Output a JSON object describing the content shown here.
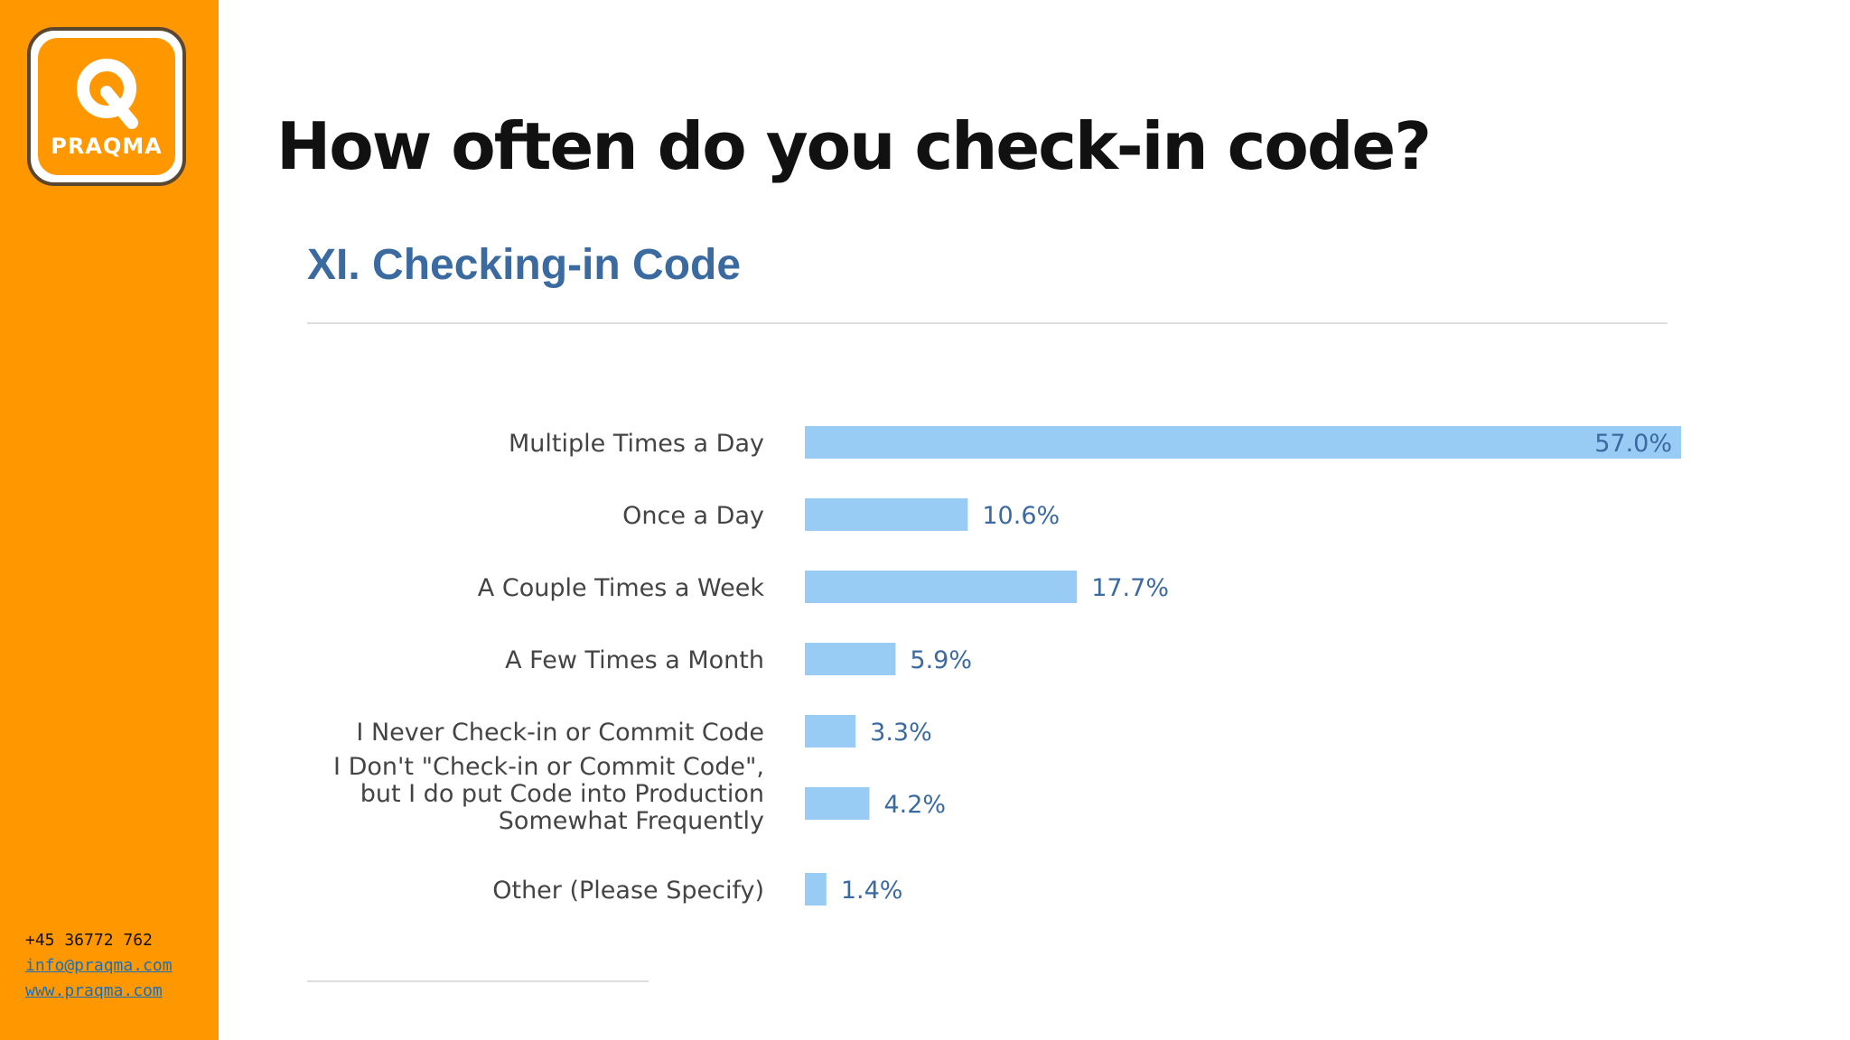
{
  "sidebar": {
    "logo_text": "PRAQMA",
    "contact": {
      "phone": "+45 36772 762",
      "email": "info@praqma.com",
      "website": "www.praqma.com"
    },
    "colors": {
      "background": "#ff9800",
      "link": "#1c6fb5"
    }
  },
  "page_title": "How often do you check-in code?",
  "chart_data": {
    "type": "bar",
    "orientation": "horizontal",
    "title": "XI. Checking-in Code",
    "categories": [
      [
        "Multiple Times a Day"
      ],
      [
        "Once a Day"
      ],
      [
        "A Couple Times a Week"
      ],
      [
        "A Few Times a Month"
      ],
      [
        "I Never Check-in or Commit Code"
      ],
      [
        "I Don't \"Check-in or Commit Code\",",
        "but I do put Code into Production",
        "Somewhat Frequently"
      ],
      [
        "Other (Please Specify)"
      ]
    ],
    "values": [
      57.0,
      10.6,
      17.7,
      5.9,
      3.3,
      4.2,
      1.4
    ],
    "value_labels": [
      "57.0%",
      "10.6%",
      "17.7%",
      "5.9%",
      "3.3%",
      "4.2%",
      "1.4%"
    ],
    "xlim": [
      0,
      57.0
    ],
    "grid": false,
    "bar_color": "#99ccf5",
    "title_color": "#3b6aa0"
  }
}
